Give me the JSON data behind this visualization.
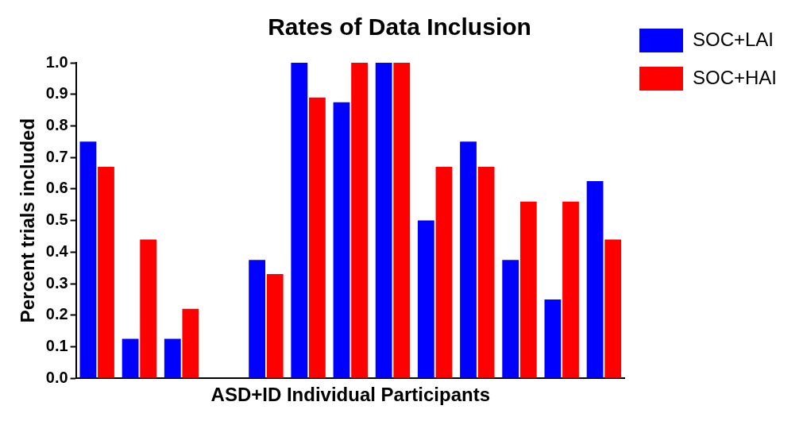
{
  "chart_data": {
    "type": "bar",
    "title": "Rates of Data Inclusion",
    "xlabel": "ASD+ID Individual Participants",
    "ylabel": "Percent trials included",
    "categories": [
      null,
      null,
      null,
      null,
      null,
      null,
      null,
      null,
      null,
      null,
      null,
      null,
      null
    ],
    "series": [
      {
        "name": "SOC+LAI",
        "color": "#0000ff",
        "values": [
          0.75,
          0.125,
          0.125,
          0,
          0.375,
          1.0,
          0.875,
          1.0,
          0.5,
          0.75,
          0.375,
          0.25,
          0.625
        ]
      },
      {
        "name": "SOC+HAI",
        "color": "#ff0000",
        "values": [
          0.67,
          0.44,
          0.22,
          0,
          0.33,
          0.89,
          1.0,
          1.0,
          0.67,
          0.67,
          0.56,
          0.56,
          0.44
        ]
      }
    ],
    "ylim": [
      0,
      1
    ],
    "yticks": [
      {
        "value": 0,
        "label": "0.0"
      },
      {
        "value": 0.1,
        "label": "0.1"
      },
      {
        "value": 0.2,
        "label": "0.2"
      },
      {
        "value": 0.3,
        "label": "0.3"
      },
      {
        "value": 0.4,
        "label": "0.4"
      },
      {
        "value": 0.5,
        "label": "0.5"
      },
      {
        "value": 0.6,
        "label": "0.6"
      },
      {
        "value": 0.7,
        "label": "0.7"
      },
      {
        "value": 0.8,
        "label": "0.8"
      },
      {
        "value": 0.9,
        "label": "0.9"
      },
      {
        "value": 1,
        "label": "1.0"
      }
    ],
    "grid": false,
    "legend": "top right"
  }
}
